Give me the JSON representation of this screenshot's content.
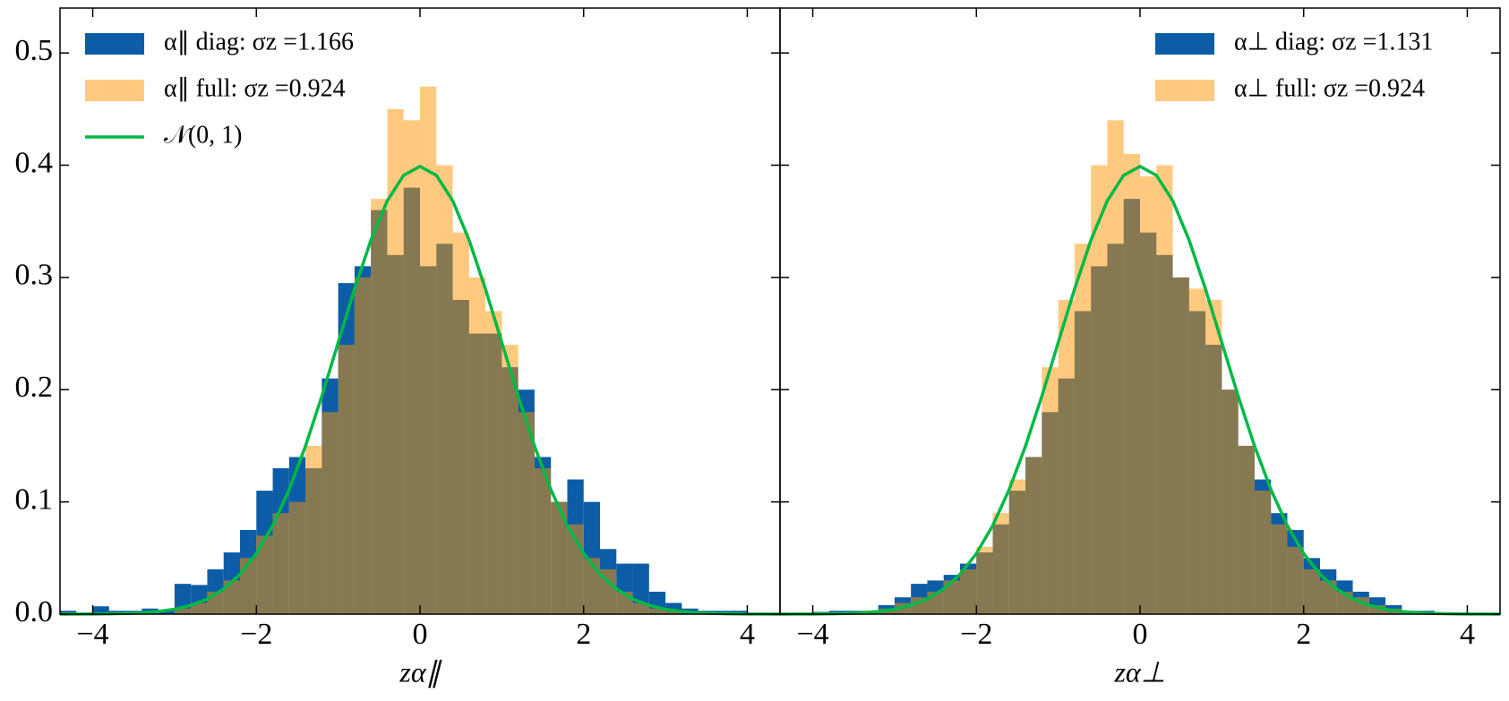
{
  "chart_data": [
    {
      "type": "histogram",
      "xlabel": "zα∥",
      "xlim": [
        -4.4,
        4.4
      ],
      "ylim": [
        0,
        0.54
      ],
      "xticks": [
        {
          "value": -4,
          "label": "−4"
        },
        {
          "value": -2,
          "label": "−2"
        },
        0,
        2,
        4
      ],
      "yticks": [
        {
          "value": 0,
          "label": "0.0"
        },
        0.1,
        0.2,
        0.3,
        0.4,
        0.5
      ],
      "legend": "upper left",
      "series": [
        {
          "name": "α∥ diag: σz =1.166",
          "color": "#0c5da5",
          "alpha": 1,
          "bins": [
            -4.4,
            -4.2,
            -4.0,
            -3.8,
            -3.6,
            -3.4,
            -3.2,
            -3.0,
            -2.8,
            -2.6,
            -2.4,
            -2.2,
            -2.0,
            -1.8,
            -1.6,
            -1.4,
            -1.2,
            -1.0,
            -0.8,
            -0.6,
            -0.4,
            -0.2,
            0,
            0.2,
            0.4,
            0.6,
            0.8,
            1.0,
            1.2,
            1.4,
            1.6,
            1.8,
            2.0,
            2.2,
            2.4,
            2.6,
            2.8,
            3.0,
            3.2,
            3.4,
            3.6,
            3.8,
            4.0
          ],
          "values": [
            0.003,
            0,
            0.007,
            0.003,
            0.003,
            0.005,
            0.003,
            0.027,
            0.026,
            0.04,
            0.055,
            0.075,
            0.11,
            0.13,
            0.14,
            0.13,
            0.21,
            0.295,
            0.31,
            0.36,
            0.32,
            0.38,
            0.31,
            0.33,
            0.28,
            0.25,
            0.25,
            0.22,
            0.2,
            0.14,
            0.1,
            0.12,
            0.1,
            0.058,
            0.045,
            0.045,
            0.02,
            0.01,
            0.005,
            0.003,
            0.003,
            0.003
          ]
        },
        {
          "name": "α∥ full: σz =0.924",
          "color": "#ff9500",
          "alpha": 0.5,
          "bins": [
            -3.0,
            -2.8,
            -2.6,
            -2.4,
            -2.2,
            -2.0,
            -1.8,
            -1.6,
            -1.4,
            -1.2,
            -1.0,
            -0.8,
            -0.6,
            -0.4,
            -0.2,
            0,
            0.2,
            0.4,
            0.6,
            0.8,
            1.0,
            1.2,
            1.4,
            1.6,
            1.8,
            2.0,
            2.2,
            2.4,
            2.6,
            2.8,
            3.0,
            3.2
          ],
          "values": [
            0.005,
            0.01,
            0.02,
            0.03,
            0.05,
            0.07,
            0.09,
            0.1,
            0.15,
            0.18,
            0.24,
            0.3,
            0.37,
            0.45,
            0.44,
            0.47,
            0.4,
            0.34,
            0.3,
            0.27,
            0.24,
            0.18,
            0.13,
            0.1,
            0.08,
            0.05,
            0.04,
            0.02,
            0.01,
            0.005,
            0.003
          ]
        },
        {
          "name": "𝒩(0, 1)",
          "type": "line",
          "color": "#00b945",
          "x": [
            -4.4,
            -4.2,
            -4.0,
            -3.8,
            -3.6,
            -3.4,
            -3.2,
            -3.0,
            -2.8,
            -2.6,
            -2.4,
            -2.2,
            -2.0,
            -1.8,
            -1.6,
            -1.4,
            -1.2,
            -1.0,
            -0.8,
            -0.6,
            -0.4,
            -0.2,
            0,
            0.2,
            0.4,
            0.6,
            0.8,
            1.0,
            1.2,
            1.4,
            1.6,
            1.8,
            2.0,
            2.2,
            2.4,
            2.6,
            2.8,
            3.0,
            3.2,
            3.4,
            3.6,
            3.8,
            4.0,
            4.2,
            4.4
          ],
          "values": [
            0,
            0.0001,
            0.0001,
            0.0003,
            0.0006,
            0.0012,
            0.0024,
            0.0044,
            0.0079,
            0.0136,
            0.0224,
            0.0355,
            0.054,
            0.079,
            0.1109,
            0.1497,
            0.1942,
            0.242,
            0.2897,
            0.3332,
            0.3683,
            0.391,
            0.3989,
            0.391,
            0.3683,
            0.3332,
            0.2897,
            0.242,
            0.1942,
            0.1497,
            0.1109,
            0.079,
            0.054,
            0.0355,
            0.0224,
            0.0136,
            0.0079,
            0.0044,
            0.0024,
            0.0012,
            0.0006,
            0.0003,
            0.0001,
            0.0001,
            0
          ]
        }
      ]
    },
    {
      "type": "histogram",
      "xlabel": "zα⊥",
      "xlim": [
        -4.4,
        4.4
      ],
      "ylim": [
        0,
        0.54
      ],
      "xticks": [
        {
          "value": -4,
          "label": "−4"
        },
        {
          "value": -2,
          "label": "−2"
        },
        0,
        2,
        4
      ],
      "legend": "upper right",
      "series": [
        {
          "name": "α⊥ diag: σz =1.131",
          "color": "#0c5da5",
          "alpha": 1,
          "bins": [
            -4.0,
            -3.8,
            -3.6,
            -3.4,
            -3.2,
            -3.0,
            -2.8,
            -2.6,
            -2.4,
            -2.2,
            -2.0,
            -1.8,
            -1.6,
            -1.4,
            -1.2,
            -1.0,
            -0.8,
            -0.6,
            -0.4,
            -0.2,
            0,
            0.2,
            0.4,
            0.6,
            0.8,
            1.0,
            1.2,
            1.4,
            1.6,
            1.8,
            2.0,
            2.2,
            2.4,
            2.6,
            2.8,
            3.0,
            3.2,
            3.4,
            3.6
          ],
          "values": [
            0.002,
            0.003,
            0.003,
            0.003,
            0.008,
            0.015,
            0.027,
            0.03,
            0.035,
            0.045,
            0.055,
            0.08,
            0.11,
            0.14,
            0.18,
            0.21,
            0.27,
            0.31,
            0.33,
            0.37,
            0.34,
            0.32,
            0.3,
            0.27,
            0.24,
            0.2,
            0.15,
            0.12,
            0.09,
            0.075,
            0.05,
            0.04,
            0.03,
            0.02,
            0.015,
            0.008,
            0.003,
            0.003
          ]
        },
        {
          "name": "α⊥ full: σz =0.924",
          "color": "#ff9500",
          "alpha": 0.5,
          "bins": [
            -3.4,
            -3.2,
            -3.0,
            -2.8,
            -2.6,
            -2.4,
            -2.2,
            -2.0,
            -1.8,
            -1.6,
            -1.4,
            -1.2,
            -1.0,
            -0.8,
            -0.6,
            -0.4,
            -0.2,
            0,
            0.2,
            0.4,
            0.6,
            0.8,
            1.0,
            1.2,
            1.4,
            1.6,
            1.8,
            2.0,
            2.2,
            2.4,
            2.6,
            2.8,
            3.0,
            3.2,
            3.4,
            3.6
          ],
          "values": [
            0.003,
            0.005,
            0.01,
            0.015,
            0.02,
            0.03,
            0.04,
            0.06,
            0.09,
            0.12,
            0.14,
            0.22,
            0.28,
            0.33,
            0.4,
            0.44,
            0.41,
            0.39,
            0.4,
            0.3,
            0.29,
            0.28,
            0.2,
            0.15,
            0.11,
            0.08,
            0.06,
            0.04,
            0.03,
            0.02,
            0.015,
            0.008,
            0.005,
            0.003,
            0.002
          ]
        },
        {
          "type": "line",
          "color": "#00b945",
          "x": [
            -4.4,
            -4.2,
            -4.0,
            -3.8,
            -3.6,
            -3.4,
            -3.2,
            -3.0,
            -2.8,
            -2.6,
            -2.4,
            -2.2,
            -2.0,
            -1.8,
            -1.6,
            -1.4,
            -1.2,
            -1.0,
            -0.8,
            -0.6,
            -0.4,
            -0.2,
            0,
            0.2,
            0.4,
            0.6,
            0.8,
            1.0,
            1.2,
            1.4,
            1.6,
            1.8,
            2.0,
            2.2,
            2.4,
            2.6,
            2.8,
            3.0,
            3.2,
            3.4,
            3.6,
            3.8,
            4.0,
            4.2,
            4.4
          ],
          "values": [
            0,
            0.0001,
            0.0001,
            0.0003,
            0.0006,
            0.0012,
            0.0024,
            0.0044,
            0.0079,
            0.0136,
            0.0224,
            0.0355,
            0.054,
            0.079,
            0.1109,
            0.1497,
            0.1942,
            0.242,
            0.2897,
            0.3332,
            0.3683,
            0.391,
            0.3989,
            0.391,
            0.3683,
            0.3332,
            0.2897,
            0.242,
            0.1942,
            0.1497,
            0.1109,
            0.079,
            0.054,
            0.0355,
            0.0224,
            0.0136,
            0.0079,
            0.0044,
            0.0024,
            0.0012,
            0.0006,
            0.0003,
            0.0001,
            0.0001,
            0
          ]
        }
      ]
    }
  ]
}
